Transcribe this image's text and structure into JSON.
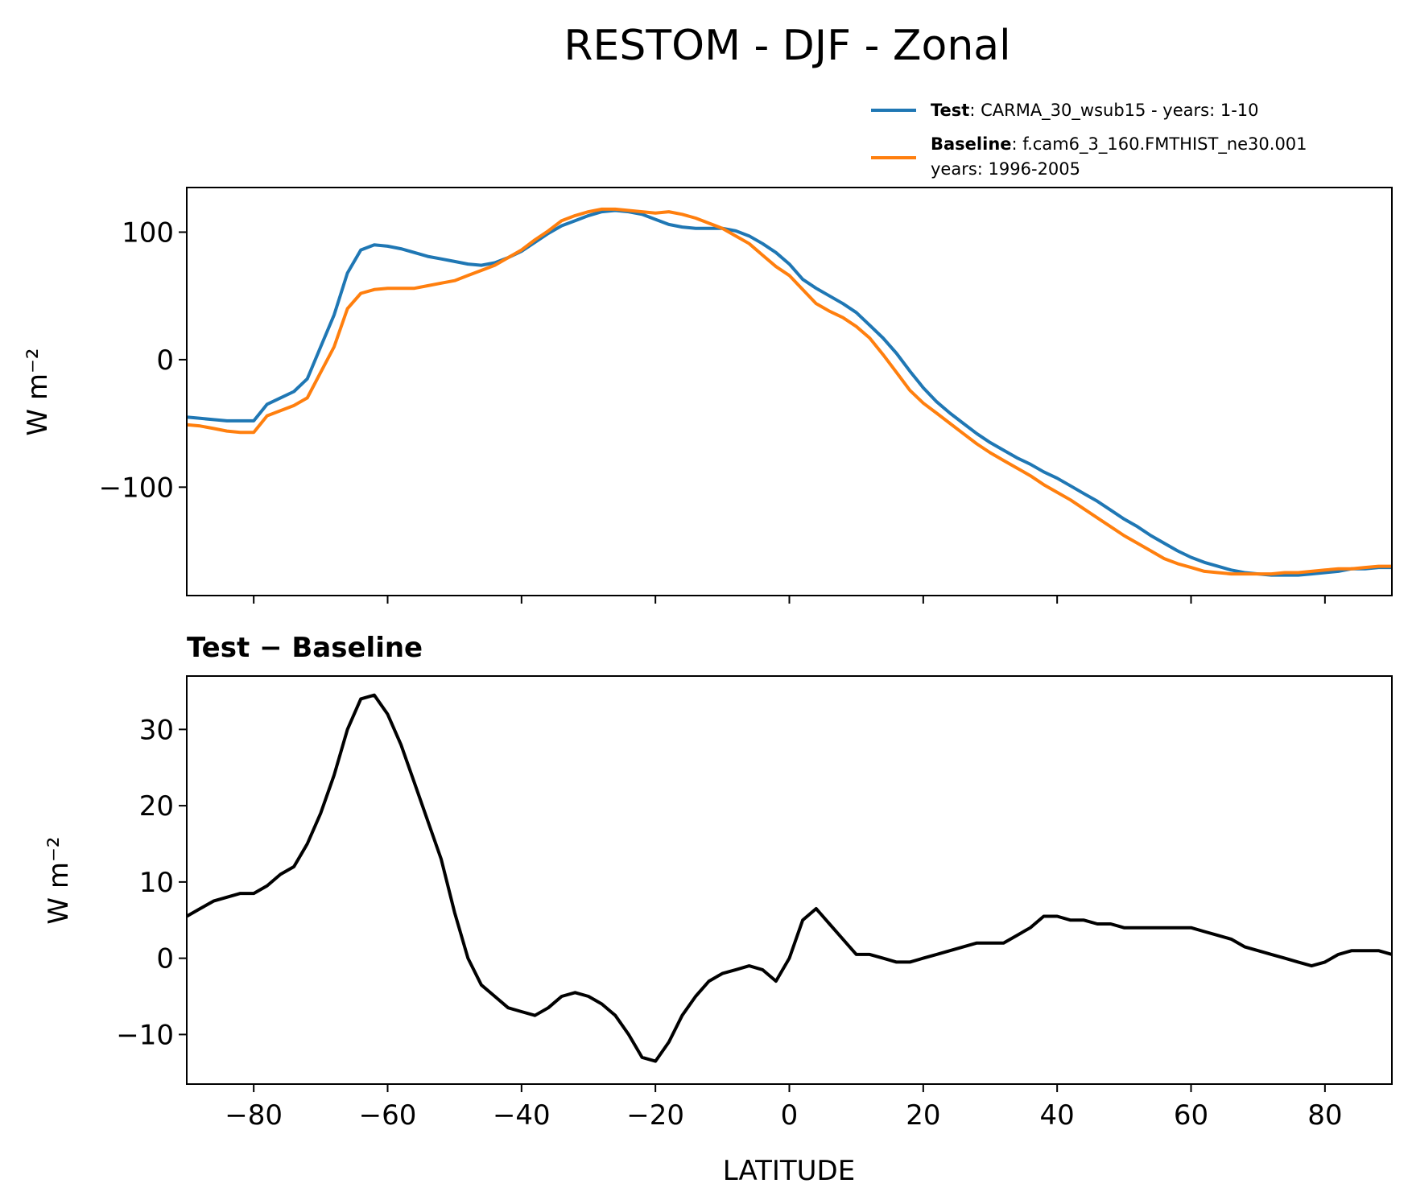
{
  "chart_data": [
    {
      "type": "line",
      "title": "RESTOM - DJF - Zonal",
      "ylabel": "W m⁻²",
      "xlim": [
        -90,
        90
      ],
      "ylim": [
        -185,
        135
      ],
      "yticks": [
        100,
        0,
        -100
      ],
      "ytick_labels": [
        "100",
        "0",
        "−100"
      ],
      "xticks": [
        -80,
        -60,
        -40,
        -20,
        0,
        20,
        40,
        60,
        80
      ],
      "legend_position": "above-right",
      "x": [
        -90,
        -88,
        -86,
        -84,
        -82,
        -80,
        -78,
        -76,
        -74,
        -72,
        -70,
        -68,
        -66,
        -64,
        -62,
        -60,
        -58,
        -56,
        -54,
        -52,
        -50,
        -48,
        -46,
        -44,
        -42,
        -40,
        -38,
        -36,
        -34,
        -32,
        -30,
        -28,
        -26,
        -24,
        -22,
        -20,
        -18,
        -16,
        -14,
        -12,
        -10,
        -8,
        -6,
        -4,
        -2,
        0,
        2,
        4,
        6,
        8,
        10,
        12,
        14,
        16,
        18,
        20,
        22,
        24,
        26,
        28,
        30,
        32,
        34,
        36,
        38,
        40,
        42,
        44,
        46,
        48,
        50,
        52,
        54,
        56,
        58,
        60,
        62,
        64,
        66,
        68,
        70,
        72,
        74,
        76,
        78,
        80,
        82,
        84,
        86,
        88,
        90
      ],
      "series": [
        {
          "name": "Test",
          "legend_label": "CARMA_30_wsub15 - years: 1-10",
          "color": "#1f77b4",
          "values": [
            -45,
            -46,
            -47,
            -48,
            -48,
            -48,
            -35,
            -30,
            -25,
            -15,
            10,
            35,
            68,
            86,
            90,
            89,
            87,
            84,
            81,
            79,
            77,
            75,
            74,
            76,
            80,
            85,
            92,
            99,
            105,
            109,
            113,
            116,
            117,
            116,
            114,
            110,
            106,
            104,
            103,
            103,
            103,
            101,
            97,
            91,
            84,
            75,
            63,
            56,
            50,
            44,
            37,
            27,
            17,
            5,
            -9,
            -22,
            -33,
            -42,
            -50,
            -58,
            -65,
            -71,
            -77,
            -82,
            -88,
            -93,
            -99,
            -105,
            -111,
            -118,
            -125,
            -131,
            -138,
            -144,
            -150,
            -155,
            -159,
            -162,
            -165,
            -167,
            -168,
            -169,
            -169,
            -169,
            -168,
            -167,
            -166,
            -164,
            -164,
            -163,
            -163
          ]
        },
        {
          "name": "Baseline",
          "legend_label": "f.cam6_3_160.FMTHIST_ne30.001",
          "legend_label_line2": "years: 1996-2005",
          "color": "#ff7f0e",
          "values": [
            -51,
            -52,
            -54,
            -56,
            -57,
            -57,
            -44,
            -40,
            -36,
            -30,
            -10,
            10,
            40,
            52,
            55,
            56,
            56,
            56,
            58,
            60,
            62,
            66,
            70,
            74,
            80,
            86,
            94,
            101,
            109,
            113,
            116,
            118,
            118,
            117,
            116,
            115,
            116,
            114,
            111,
            107,
            103,
            97,
            91,
            82,
            73,
            66,
            55,
            44,
            38,
            33,
            26,
            17,
            4,
            -10,
            -24,
            -34,
            -42,
            -50,
            -58,
            -66,
            -73,
            -79,
            -85,
            -91,
            -98,
            -104,
            -110,
            -117,
            -124,
            -131,
            -138,
            -144,
            -150,
            -156,
            -160,
            -163,
            -166,
            -167,
            -168,
            -168,
            -168,
            -168,
            -167,
            -167,
            -166,
            -165,
            -164,
            -164,
            -163,
            -162,
            -162
          ]
        }
      ],
      "legend_entries": [
        {
          "bold": "Test",
          "text": ": CARMA_30_wsub15 - years: 1-10",
          "text2": ""
        },
        {
          "bold": "Baseline",
          "text": ": f.cam6_3_160.FMTHIST_ne30.001",
          "text2": "years: 1996-2005"
        }
      ]
    },
    {
      "type": "line",
      "title": "Test − Baseline",
      "xlabel": "LATITUDE",
      "ylabel": "W m⁻²",
      "xlim": [
        -90,
        90
      ],
      "ylim": [
        -16.5,
        37
      ],
      "yticks": [
        30,
        20,
        10,
        0,
        -10
      ],
      "ytick_labels": [
        "30",
        "20",
        "10",
        "0",
        "−10"
      ],
      "xticks": [
        -80,
        -60,
        -40,
        -20,
        0,
        20,
        40,
        60,
        80
      ],
      "xtick_labels": [
        "−80",
        "−60",
        "−40",
        "−20",
        "0",
        "20",
        "40",
        "60",
        "80"
      ],
      "x": [
        -90,
        -88,
        -86,
        -84,
        -82,
        -80,
        -78,
        -76,
        -74,
        -72,
        -70,
        -68,
        -66,
        -64,
        -62,
        -60,
        -58,
        -56,
        -54,
        -52,
        -50,
        -48,
        -46,
        -44,
        -42,
        -40,
        -38,
        -36,
        -34,
        -32,
        -30,
        -28,
        -26,
        -24,
        -22,
        -20,
        -18,
        -16,
        -14,
        -12,
        -10,
        -8,
        -6,
        -4,
        -2,
        0,
        2,
        4,
        6,
        8,
        10,
        12,
        14,
        16,
        18,
        20,
        22,
        24,
        26,
        28,
        30,
        32,
        34,
        36,
        38,
        40,
        42,
        44,
        46,
        48,
        50,
        52,
        54,
        56,
        58,
        60,
        62,
        64,
        66,
        68,
        70,
        72,
        74,
        76,
        78,
        80,
        82,
        84,
        86,
        88,
        90
      ],
      "series": [
        {
          "name": "",
          "color": "#000000",
          "values": [
            5.5,
            6.5,
            7.5,
            8,
            8.5,
            8.5,
            9.5,
            11,
            12,
            15,
            19,
            24,
            30,
            34,
            34.5,
            32,
            28,
            23,
            18,
            13,
            6,
            0,
            -3.5,
            -5,
            -6.5,
            -7,
            -7.5,
            -6.5,
            -5,
            -4.5,
            -5,
            -6,
            -7.5,
            -10,
            -13,
            -13.5,
            -11,
            -7.5,
            -5,
            -3,
            -2,
            -1.5,
            -1,
            -1.5,
            -3,
            0,
            5,
            6.5,
            4.5,
            2.5,
            0.5,
            0.5,
            0,
            -0.5,
            -0.5,
            0,
            0.5,
            1,
            1.5,
            2,
            2,
            2,
            3,
            4,
            5.5,
            5.5,
            5,
            5,
            4.5,
            4.5,
            4,
            4,
            4,
            4,
            4,
            4,
            3.5,
            3,
            2.5,
            1.5,
            1,
            0.5,
            0,
            -0.5,
            -1,
            -0.5,
            0.5,
            1,
            1,
            1,
            0.5
          ]
        }
      ]
    }
  ]
}
